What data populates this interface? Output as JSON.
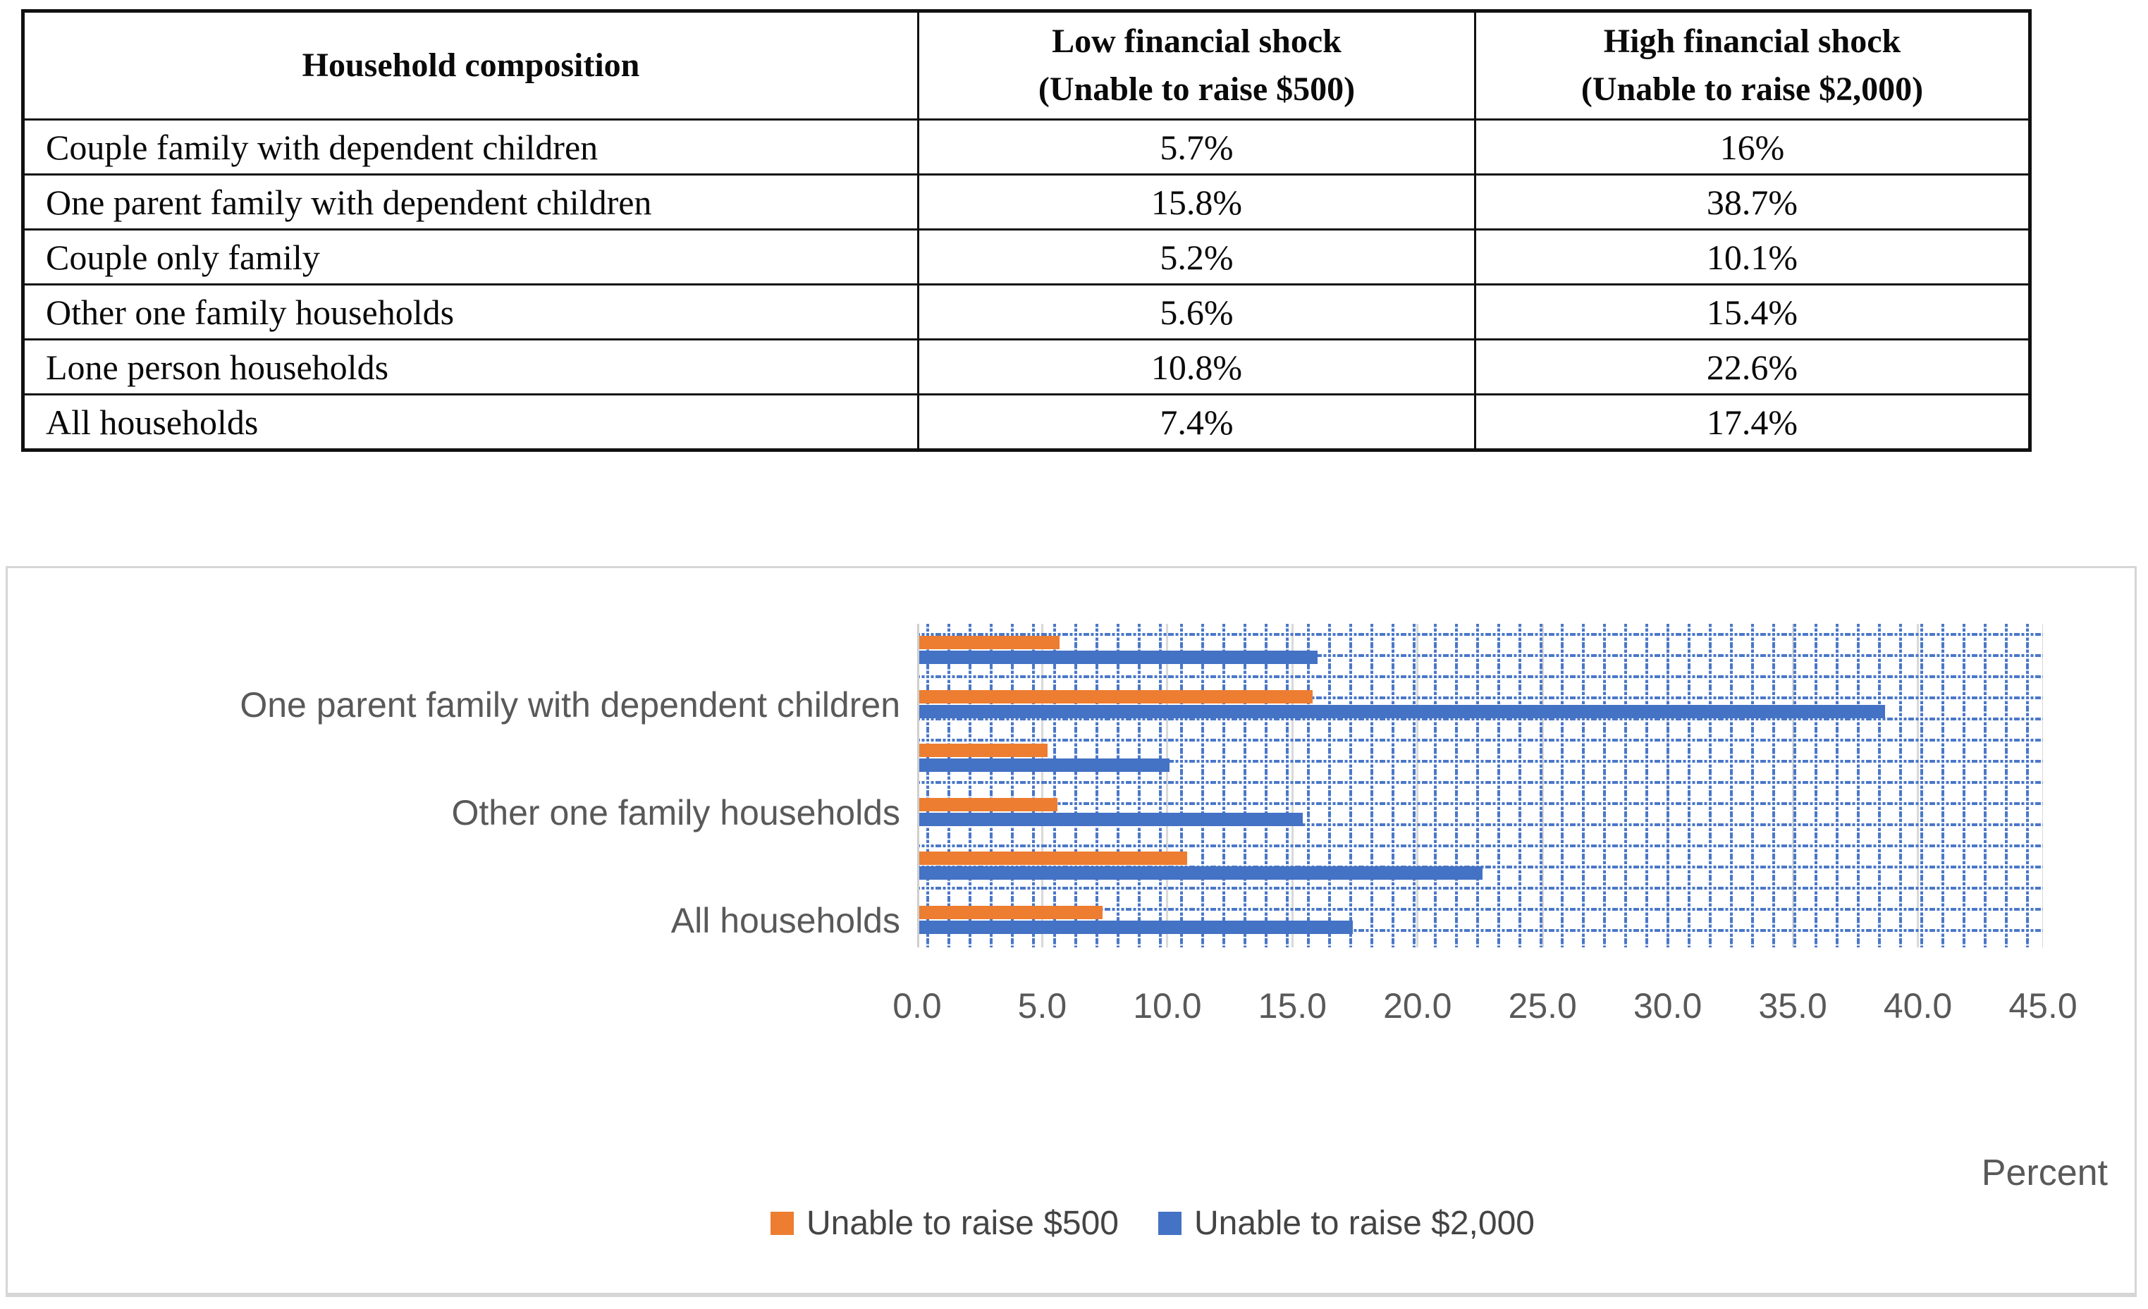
{
  "table": {
    "header": {
      "composition": "Household composition",
      "low_line1": "Low financial shock",
      "low_line2": "(Unable to raise $500)",
      "high_line1": "High financial shock",
      "high_line2": "(Unable to raise $2,000)"
    },
    "rows": [
      {
        "household": "Couple family with dependent children",
        "low": "5.7%",
        "high": "16%"
      },
      {
        "household": "One parent family with dependent children",
        "low": "15.8%",
        "high": "38.7%"
      },
      {
        "household": "Couple only family",
        "low": "5.2%",
        "high": "10.1%"
      },
      {
        "household": "Other one family households",
        "low": "5.6%",
        "high": "15.4%"
      },
      {
        "household": "Lone person households",
        "low": "10.8%",
        "high": "22.6%"
      },
      {
        "household": "All households",
        "low": "7.4%",
        "high": "17.4%"
      }
    ]
  },
  "chart_data": {
    "type": "bar",
    "orientation": "horizontal",
    "categories": [
      "Couple family with dependent children",
      "One parent family with dependent children",
      "Couple only family",
      "Other one family households",
      "Lone person households",
      "All households"
    ],
    "axis_labels_shown": [
      "One parent family with dependent children",
      "Other one family households",
      "All households"
    ],
    "series": [
      {
        "name": "Unable to raise $500",
        "color": "#ED7D31",
        "values": [
          5.7,
          15.8,
          5.2,
          5.6,
          10.8,
          7.4
        ]
      },
      {
        "name": "Unable to raise $2,000",
        "color": "#4472C4",
        "values": [
          16,
          38.7,
          10.1,
          15.4,
          22.6,
          17.4
        ]
      }
    ],
    "xlim": [
      0,
      45
    ],
    "x_ticks": [
      "0.0",
      "5.0",
      "10.0",
      "15.0",
      "20.0",
      "25.0",
      "30.0",
      "35.0",
      "40.0",
      "45.0"
    ],
    "axis_label": "Percent",
    "legend_position": "bottom",
    "grid": true,
    "colors": {
      "pattern_dots": "#4A77C9",
      "gridline": "#D9D9D9",
      "axis_text": "#595959",
      "legend_text": "#444444"
    }
  }
}
